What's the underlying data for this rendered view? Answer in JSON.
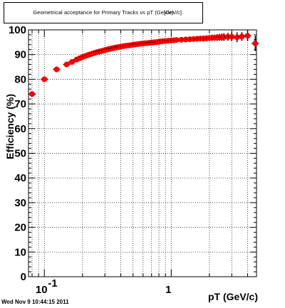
{
  "chart_data": {
    "type": "scatter",
    "title": "Geometrical acceptance for Primary Tracks vs pT (GeV/c)",
    "title_overlap": "[GeV/c]",
    "xlabel": "pT (GeV/c)",
    "ylabel": "Efficiency (%)",
    "x_scale": "log",
    "xlim": [
      0.075,
      4.7
    ],
    "ylim": [
      0,
      100
    ],
    "x_tick_labels": [
      {
        "value": 0.1,
        "base": "10",
        "exp": "-1"
      },
      {
        "value": 1,
        "base": "1",
        "exp": ""
      }
    ],
    "y_ticks": [
      0,
      10,
      20,
      30,
      40,
      50,
      60,
      70,
      80,
      90,
      100
    ],
    "y_tick_labels": [
      "0",
      "10",
      "20",
      "30",
      "40",
      "50",
      "60",
      "70",
      "80",
      "90",
      "100"
    ],
    "grid": true,
    "colors": {
      "marker": "#ff0000",
      "error": "#000000",
      "frame": "#000000",
      "grid": "#000000"
    },
    "series": [
      {
        "x": [
          0.08,
          0.1,
          0.125,
          0.15,
          0.165,
          0.18,
          0.19,
          0.2,
          0.21,
          0.22,
          0.23,
          0.24,
          0.25,
          0.26,
          0.27,
          0.28,
          0.29,
          0.3,
          0.31,
          0.32,
          0.33,
          0.34,
          0.35,
          0.36,
          0.37,
          0.38,
          0.39,
          0.4,
          0.42,
          0.44,
          0.46,
          0.48,
          0.5,
          0.52,
          0.54,
          0.56,
          0.58,
          0.6,
          0.62,
          0.64,
          0.66,
          0.68,
          0.7,
          0.72,
          0.74,
          0.76,
          0.78,
          0.8,
          0.83,
          0.86,
          0.9,
          0.95,
          1.0,
          1.05,
          1.1,
          1.2,
          1.3,
          1.4,
          1.5,
          1.6,
          1.7,
          1.8,
          1.9,
          2.0,
          2.1,
          2.2,
          2.3,
          2.4,
          2.5,
          2.6,
          2.8,
          3.0,
          3.3,
          3.6,
          4.0,
          4.6
        ],
        "y": [
          74,
          80,
          84,
          86,
          87,
          88,
          88.5,
          89,
          89.4,
          89.8,
          90.1,
          90.4,
          90.7,
          91.0,
          91.2,
          91.4,
          91.6,
          91.8,
          92.0,
          92.2,
          92.3,
          92.5,
          92.6,
          92.8,
          92.9,
          93.0,
          93.1,
          93.2,
          93.4,
          93.6,
          93.7,
          93.8,
          94.0,
          94.1,
          94.2,
          94.3,
          94.4,
          94.5,
          94.6,
          94.6,
          94.7,
          94.8,
          94.9,
          94.9,
          95.0,
          95.0,
          95.1,
          95.2,
          95.3,
          95.4,
          95.5,
          95.6,
          95.7,
          95.8,
          95.9,
          96.0,
          96.1,
          96.2,
          96.3,
          96.4,
          96.5,
          96.5,
          96.6,
          96.7,
          96.8,
          96.8,
          96.9,
          97.0,
          97.0,
          97.1,
          97.2,
          97.2,
          97.0,
          97.3,
          97.6,
          94.5
        ],
        "yerr": [
          0.5,
          0.5,
          0.5,
          0.5,
          0.4,
          0.4,
          0.4,
          0.4,
          0.4,
          0.4,
          0.4,
          0.4,
          0.4,
          0.4,
          0.4,
          0.4,
          0.4,
          0.4,
          0.4,
          0.4,
          0.4,
          0.4,
          0.4,
          0.4,
          0.4,
          0.4,
          0.4,
          0.4,
          0.4,
          0.4,
          0.4,
          0.4,
          0.4,
          0.4,
          0.4,
          0.4,
          0.4,
          0.4,
          0.4,
          0.4,
          0.4,
          0.4,
          0.4,
          0.4,
          0.4,
          0.4,
          0.4,
          0.4,
          0.4,
          0.4,
          0.4,
          0.4,
          0.4,
          0.4,
          0.4,
          0.4,
          0.5,
          0.5,
          0.5,
          0.5,
          0.5,
          0.6,
          0.6,
          0.6,
          0.7,
          0.7,
          0.8,
          0.8,
          0.9,
          1.0,
          1.0,
          1.2,
          1.4,
          1.2,
          1.5,
          2.5
        ]
      }
    ]
  },
  "footer": {
    "timestamp": "Wed Nov  9 10:44:15 2011"
  }
}
